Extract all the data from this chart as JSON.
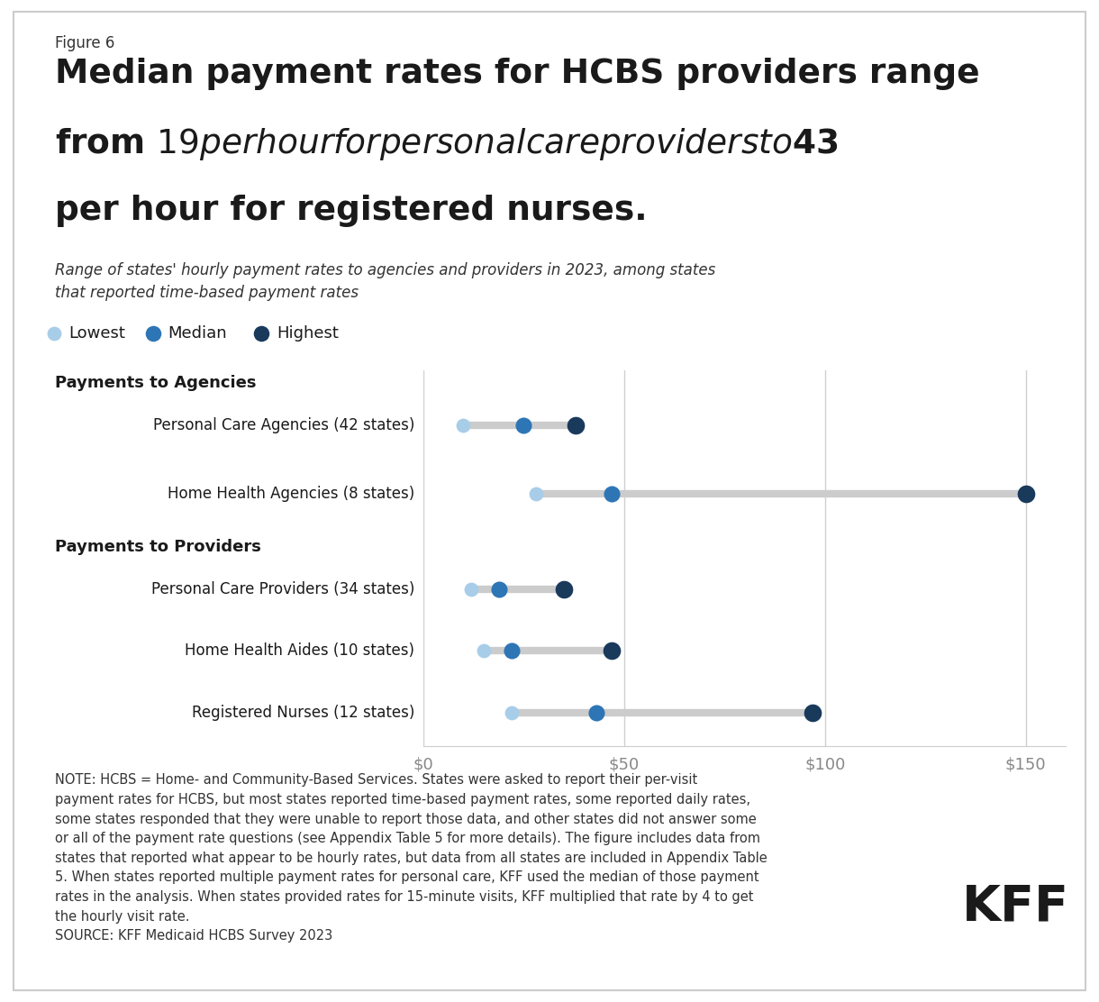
{
  "figure_label": "Figure 6",
  "title_line1": "Median payment rates for HCBS providers range",
  "title_line2": "from $19 per hour for personal care providers to $43",
  "title_line3": "per hour for registered nurses.",
  "subtitle": "Range of states' hourly payment rates to agencies and providers in 2023, among states\nthat reported time-based payment rates",
  "categories": [
    "Personal Care Agencies (42 states)",
    "Home Health Agencies (8 states)",
    "Personal Care Providers (34 states)",
    "Home Health Aides (10 states)",
    "Registered Nurses (12 states)"
  ],
  "group_labels": [
    "Payments to Agencies",
    "Payments to Providers"
  ],
  "data": [
    {
      "lowest": 10,
      "median": 25,
      "highest": 38
    },
    {
      "lowest": 28,
      "median": 47,
      "highest": 150
    },
    {
      "lowest": 12,
      "median": 19,
      "highest": 35
    },
    {
      "lowest": 15,
      "median": 22,
      "highest": 47
    },
    {
      "lowest": 22,
      "median": 43,
      "highest": 97
    }
  ],
  "color_lowest": "#a8cde8",
  "color_median": "#2e75b6",
  "color_highest": "#1a3a5c",
  "xlim": [
    0,
    160
  ],
  "xticks": [
    0,
    50,
    100,
    150
  ],
  "xticklabels": [
    "$0",
    "$50",
    "$100",
    "$150"
  ],
  "note_text": "NOTE: HCBS = Home- and Community-Based Services. States were asked to report their per-visit\npayment rates for HCBS, but most states reported time-based payment rates, some reported daily rates,\nsome states responded that they were unable to report those data, and other states did not answer some\nor all of the payment rate questions (see Appendix Table 5 for more details). The figure includes data from\nstates that reported what appear to be hourly rates, but data from all states are included in Appendix Table\n5. When states reported multiple payment rates for personal care, KFF used the median of those payment\nrates in the analysis. When states provided rates for 15-minute visits, KFF multiplied that rate by 4 to get\nthe hourly visit rate.\nSOURCE: KFF Medicaid HCBS Survey 2023",
  "background_color": "#ffffff",
  "border_color": "#cccccc",
  "line_color": "#cccccc",
  "text_color": "#1a1a1a",
  "label_color": "#333333",
  "tick_color": "#888888",
  "grid_color": "#d0d0d0"
}
